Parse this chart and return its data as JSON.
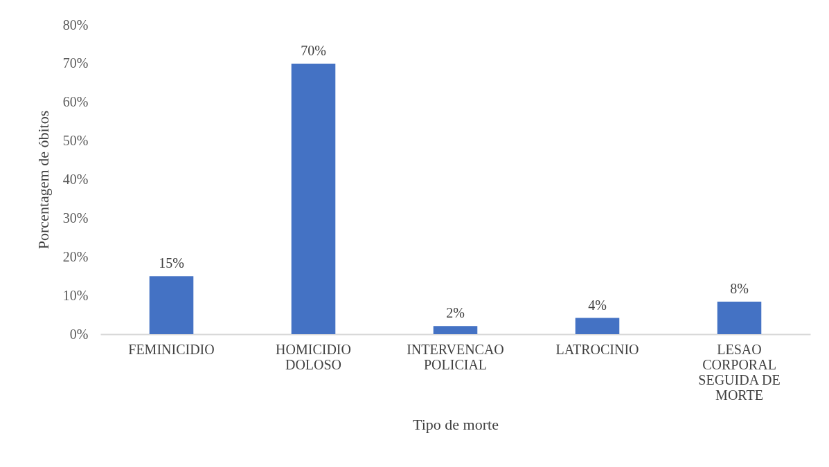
{
  "chart_data": {
    "type": "bar",
    "xlabel": "Tipo de morte",
    "ylabel": "Porcentagem de óbitos",
    "categories": [
      "FEMINICIDIO",
      "HOMICIDIO DOLOSO",
      "INTERVENCAO POLICIAL",
      "LATROCINIO",
      "LESAO CORPORAL SEGUIDA DE MORTE"
    ],
    "values": [
      15,
      70,
      2.1,
      4.2,
      8.4
    ],
    "value_labels": [
      "15%",
      "70%",
      "2%",
      "4%",
      "8%"
    ],
    "color": "#4472c4",
    "ylim": [
      0,
      80
    ],
    "yticks": [
      {
        "value": 0,
        "label": "0%"
      },
      {
        "value": 10,
        "label": "10%"
      },
      {
        "value": 20,
        "label": "20%"
      },
      {
        "value": 30,
        "label": "30%"
      },
      {
        "value": 40,
        "label": "40%"
      },
      {
        "value": 50,
        "label": "50%"
      },
      {
        "value": 60,
        "label": "60%"
      },
      {
        "value": 70,
        "label": "70%"
      },
      {
        "value": 80,
        "label": "80%"
      }
    ],
    "grid": false
  }
}
